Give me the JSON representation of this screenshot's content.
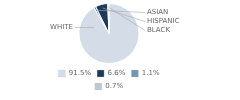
{
  "chart_data": {
    "type": "pie",
    "categories": [
      "WHITE",
      "ASIAN",
      "HISPANIC",
      "BLACK"
    ],
    "values": [
      91.5,
      1.1,
      6.6,
      0.7
    ],
    "value_labels": [
      "91.5%",
      "1.1%",
      "6.6%",
      "0.7%"
    ],
    "colors": [
      "#d4dce8",
      "#7096b0",
      "#1c3a5e",
      "#bec8d4"
    ],
    "legend": "bottom"
  }
}
